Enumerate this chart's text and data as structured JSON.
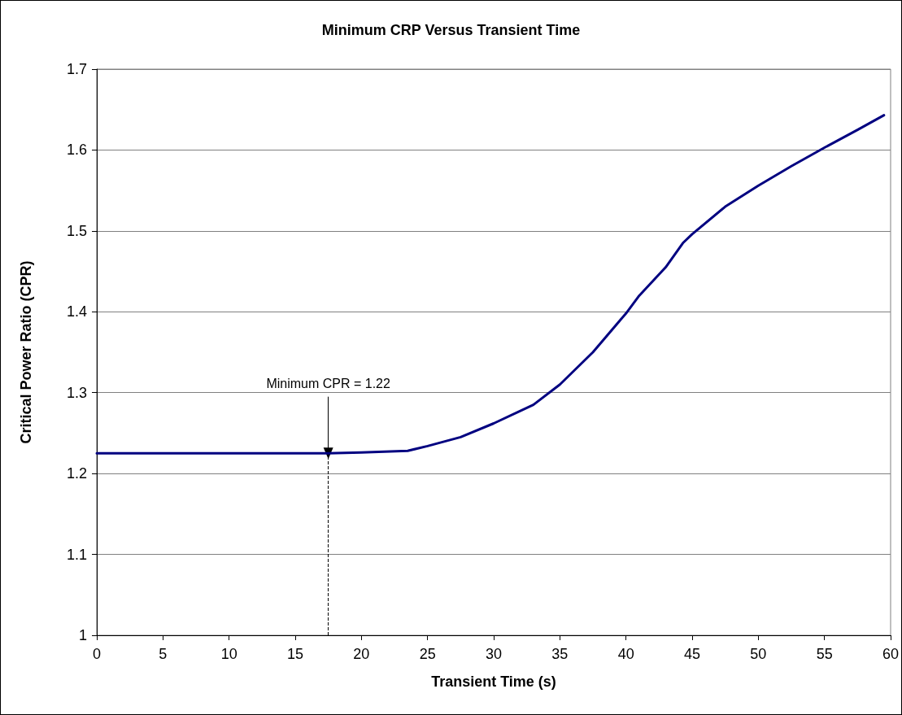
{
  "chart_data": {
    "type": "line",
    "title": "Minimum CRP Versus Transient Time",
    "xlabel": "Transient Time (s)",
    "ylabel": "Critical Power Ratio (CPR)",
    "x": [
      0,
      5,
      10,
      15,
      17.5,
      20,
      23.5,
      25,
      27.5,
      30,
      33,
      35,
      37.5,
      40,
      41,
      43,
      44.3,
      45,
      47.5,
      50,
      52.5,
      55,
      57.5,
      59.5
    ],
    "series": [
      {
        "color": "#000080",
        "values": [
          1.225,
          1.225,
          1.225,
          1.225,
          1.225,
          1.226,
          1.228,
          1.234,
          1.245,
          1.262,
          1.285,
          1.31,
          1.35,
          1.398,
          1.42,
          1.455,
          1.485,
          1.496,
          1.53,
          1.556,
          1.58,
          1.603,
          1.625,
          1.643
        ]
      }
    ],
    "xlim": [
      0,
      60
    ],
    "xticks": [
      0,
      5,
      10,
      15,
      20,
      25,
      30,
      35,
      40,
      45,
      50,
      55,
      60
    ],
    "ylim": [
      1,
      1.7
    ],
    "yticks": [
      1,
      1.1,
      1.2,
      1.3,
      1.4,
      1.5,
      1.6,
      1.7
    ],
    "grid": "y",
    "marker": "none",
    "line_style": "solid",
    "annotations": [
      {
        "text": "Minimum CPR = 1.22",
        "x": 17.5,
        "y": 1.225
      }
    ],
    "ref_lines": [
      {
        "axis": "x",
        "value": 17.5,
        "label": null,
        "color": "#000000",
        "line_style": "dashed"
      }
    ]
  }
}
